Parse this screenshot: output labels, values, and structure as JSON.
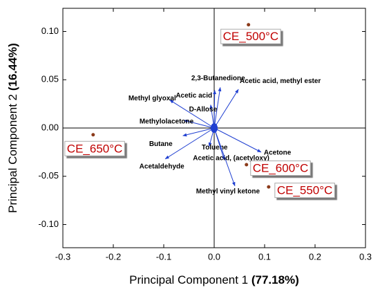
{
  "chart_data": {
    "type": "biplot",
    "xlabel": [
      "Principal Component 1",
      "(77.18%)"
    ],
    "ylabel": [
      "Principal Component 2",
      "(16.44%)"
    ],
    "xlim": [
      -0.3,
      0.3
    ],
    "ylim": [
      -0.124,
      0.124
    ],
    "xticks": [
      -0.3,
      -0.2,
      -0.1,
      {
        "value": 0,
        "label": "0.0"
      },
      0.1,
      0.2,
      0.3
    ],
    "yticks": [
      {
        "value": -0.1,
        "label": "-0.10"
      },
      -0.05,
      {
        "value": 0,
        "label": "0.00"
      },
      0.05,
      {
        "value": 0.1,
        "label": "0.10"
      }
    ],
    "scores": {
      "color": "#8b3a1a",
      "labels": [
        "CE_500°C",
        "CE_650°C",
        "CE_600°C",
        "CE_550°C"
      ],
      "x": [
        0.068,
        -0.24,
        0.064,
        0.108
      ],
      "y": [
        0.107,
        -0.007,
        -0.038,
        -0.061
      ]
    },
    "loadings": {
      "color": "#1f3fd1",
      "labels": [
        "Acetic acid, methyl ester",
        "Acetic acid",
        "2,3-Butanedione",
        "Methyl glyoxal",
        "D-Allose",
        "Methylolacetone",
        "Butane",
        "Acetaldehyde",
        "Toluene",
        "Acetic acid, (acetyloxy)",
        "Acetone",
        "Methyl vinyl ketone"
      ],
      "x": [
        0.048,
        0.001,
        0.012,
        -0.088,
        -0.007,
        -0.06,
        -0.062,
        -0.097,
        -0.01,
        0.02,
        0.093,
        0.041
      ],
      "y": [
        0.04,
        0.039,
        0.042,
        0.029,
        0.024,
        0.008,
        -0.008,
        -0.032,
        -0.019,
        -0.033,
        -0.025,
        -0.06
      ]
    }
  }
}
